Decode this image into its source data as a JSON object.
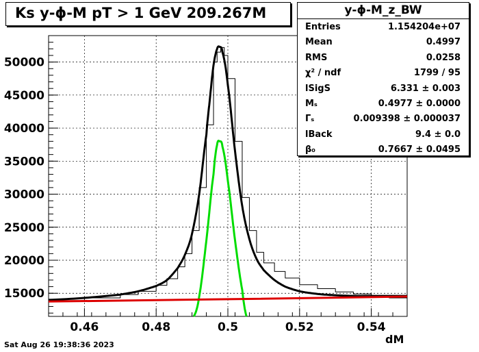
{
  "title": "Ks y-ϕ-M pT > 1 GeV  209.267M",
  "timestamp": "Sat Aug 26 19:38:36 2023",
  "stats": {
    "name": "y-ϕ-M_z_BW",
    "rows": [
      {
        "key": "Entries",
        "value": "1.154204e+07"
      },
      {
        "key": "Mean",
        "value": "0.4997"
      },
      {
        "key": "RMS",
        "value": "0.0258"
      },
      {
        "key": "χ² / ndf",
        "value": "1799 / 95"
      },
      {
        "key": "lSigS",
        "value": "6.331 ± 0.003"
      },
      {
        "key": "Mₛ",
        "value": "0.4977 ± 0.0000"
      },
      {
        "key": "Γₛ",
        "value": "0.009398 ± 0.000037"
      },
      {
        "key": "lBack",
        "value": "9.4 ± 0.0"
      },
      {
        "key": "β₀",
        "value": "0.7667 ± 0.0495"
      }
    ]
  },
  "colors": {
    "histogram": "#000000",
    "total_fit": "#000000",
    "signal": "#00dd00",
    "background": "#dd0000"
  },
  "chart_data": {
    "type": "line",
    "xlabel": "dM",
    "ylabel": "",
    "xlim": [
      0.45,
      0.55
    ],
    "ylim": [
      11500,
      54000
    ],
    "grid": true,
    "xticks": [
      0.46,
      0.48,
      0.5,
      0.52,
      0.54
    ],
    "xtick_labels": [
      "0.46",
      "0.48",
      "0.5",
      "0.52",
      "0.54"
    ],
    "yticks": [
      15000,
      20000,
      25000,
      30000,
      35000,
      40000,
      45000,
      50000
    ],
    "ytick_labels": [
      "15000",
      "20000",
      "25000",
      "30000",
      "35000",
      "40000",
      "45000",
      "50000"
    ],
    "series": [
      {
        "name": "histogram",
        "style": "step",
        "x": [
          0.45,
          0.46,
          0.47,
          0.475,
          0.48,
          0.483,
          0.486,
          0.488,
          0.49,
          0.492,
          0.494,
          0.496,
          0.497,
          0.498,
          0.499,
          0.5,
          0.502,
          0.504,
          0.506,
          0.508,
          0.51,
          0.513,
          0.516,
          0.52,
          0.525,
          0.53,
          0.535,
          0.54,
          0.545,
          0.55
        ],
        "y": [
          13900,
          14300,
          14800,
          15300,
          16200,
          17200,
          19000,
          21000,
          24500,
          31000,
          40500,
          50000,
          51500,
          52200,
          51000,
          47500,
          38000,
          29500,
          24500,
          21200,
          19600,
          18300,
          17300,
          16300,
          15700,
          15200,
          14900,
          14500,
          14300,
          13600
        ]
      },
      {
        "name": "total fit",
        "style": "smooth",
        "x": [
          0.45,
          0.46,
          0.47,
          0.475,
          0.48,
          0.483,
          0.486,
          0.488,
          0.49,
          0.492,
          0.494,
          0.495,
          0.496,
          0.497,
          0.4977,
          0.4985,
          0.5,
          0.502,
          0.504,
          0.506,
          0.508,
          0.51,
          0.513,
          0.516,
          0.52,
          0.525,
          0.53,
          0.535,
          0.54,
          0.545,
          0.55
        ],
        "y": [
          14000,
          14300,
          14800,
          15300,
          16100,
          17000,
          18800,
          20800,
          24000,
          30000,
          39000,
          44500,
          49500,
          52000,
          52300,
          51500,
          46500,
          36500,
          28200,
          23200,
          20200,
          18500,
          17000,
          16000,
          15300,
          14900,
          14700,
          14600,
          14600,
          14600,
          14600
        ]
      },
      {
        "name": "signal",
        "style": "smooth",
        "x": [
          0.4905,
          0.492,
          0.494,
          0.496,
          0.497,
          0.4977,
          0.4985,
          0.5,
          0.502,
          0.504,
          0.5052
        ],
        "y": [
          11500,
          14500,
          23000,
          33000,
          37500,
          38000,
          37200,
          32000,
          23000,
          15500,
          11500
        ]
      },
      {
        "name": "background",
        "style": "line",
        "x": [
          0.45,
          0.5,
          0.55
        ],
        "y": [
          13750,
          14100,
          14500
        ]
      }
    ]
  }
}
